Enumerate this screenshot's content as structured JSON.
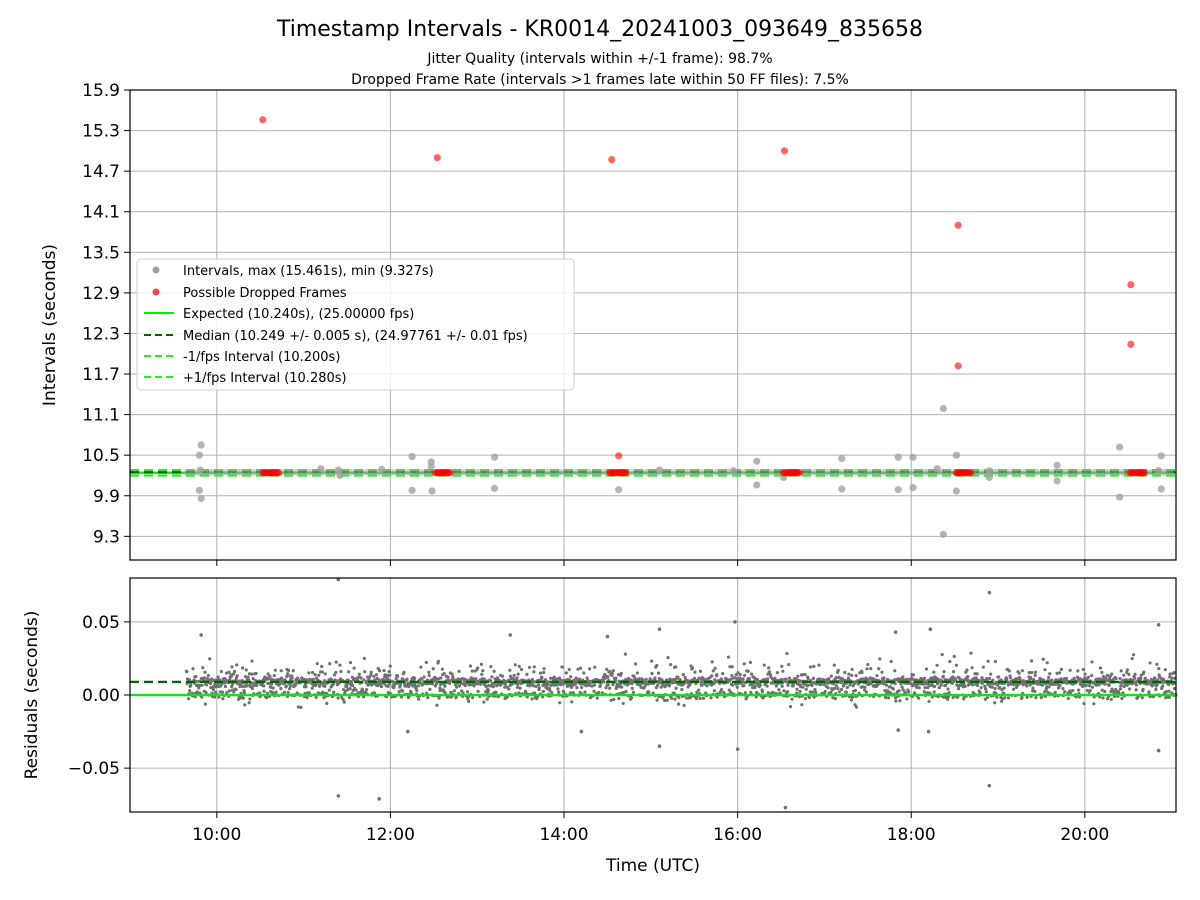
{
  "chart_data": [
    {
      "type": "scatter",
      "title": "Timestamp Intervals - KR0014_20241003_093649_835658",
      "subtitle_lines": [
        "Jitter Quality (intervals within +/-1 frame): 98.7%",
        "Dropped Frame Rate (intervals >1 frames late within 50 FF files): 7.5%"
      ],
      "ylabel": "Intervals (seconds)",
      "xlim_hours": [
        9.0,
        21.05
      ],
      "ylim": [
        8.95,
        15.9
      ],
      "yticks": [
        9.3,
        9.9,
        10.5,
        11.1,
        11.7,
        12.3,
        12.9,
        13.5,
        14.1,
        14.7,
        15.3,
        15.9
      ],
      "ytick_labels": [
        "9.3",
        "9.9",
        "10.5",
        "11.1",
        "11.7",
        "12.3",
        "12.9",
        "13.5",
        "14.1",
        "14.7",
        "15.3",
        "15.9"
      ],
      "grid": true,
      "legend_position": "center-left",
      "series": [
        {
          "name": "Intervals, max (15.461s), min (9.327s)",
          "kind": "scatter",
          "color": "#a0a0a0",
          "points": [
            [
              9.82,
              10.65
            ],
            [
              9.8,
              10.5
            ],
            [
              9.8,
              9.98
            ],
            [
              9.82,
              9.86
            ],
            [
              9.81,
              10.28
            ],
            [
              11.2,
              10.3
            ],
            [
              11.4,
              10.28
            ],
            [
              11.42,
              10.2
            ],
            [
              11.9,
              10.29
            ],
            [
              12.25,
              10.48
            ],
            [
              12.25,
              9.98
            ],
            [
              12.47,
              10.4
            ],
            [
              12.47,
              10.33
            ],
            [
              12.48,
              9.97
            ],
            [
              13.2,
              10.47
            ],
            [
              13.2,
              10.01
            ],
            [
              14.63,
              9.99
            ],
            [
              15.1,
              10.28
            ],
            [
              15.95,
              10.27
            ],
            [
              16.22,
              10.41
            ],
            [
              16.22,
              10.06
            ],
            [
              16.53,
              10.17
            ],
            [
              17.2,
              10.45
            ],
            [
              17.2,
              10.0
            ],
            [
              17.85,
              10.47
            ],
            [
              17.85,
              9.99
            ],
            [
              18.02,
              10.47
            ],
            [
              18.02,
              10.02
            ],
            [
              18.37,
              11.19
            ],
            [
              18.37,
              9.33
            ],
            [
              18.3,
              10.3
            ],
            [
              18.52,
              10.5
            ],
            [
              18.52,
              9.97
            ],
            [
              18.9,
              10.27
            ],
            [
              18.9,
              10.17
            ],
            [
              19.68,
              10.35
            ],
            [
              19.68,
              10.12
            ],
            [
              20.4,
              10.62
            ],
            [
              20.4,
              9.88
            ],
            [
              20.88,
              10.49
            ],
            [
              20.88,
              10.0
            ],
            [
              20.85,
              10.27
            ]
          ]
        },
        {
          "name": "Possible Dropped Frames",
          "kind": "scatter",
          "color": "#ff0000",
          "points": [
            [
              10.53,
              15.46
            ],
            [
              12.54,
              14.9
            ],
            [
              14.55,
              14.87
            ],
            [
              16.54,
              15.0
            ],
            [
              18.54,
              13.9
            ],
            [
              18.54,
              11.82
            ],
            [
              20.53,
              13.02
            ],
            [
              20.53,
              12.14
            ],
            [
              14.63,
              10.49
            ]
          ],
          "clusters": [
            {
              "x_start": 10.53,
              "x_end": 10.72,
              "y": 10.24
            },
            {
              "x_start": 12.52,
              "x_end": 12.7,
              "y": 10.24
            },
            {
              "x_start": 14.53,
              "x_end": 14.72,
              "y": 10.24
            },
            {
              "x_start": 16.53,
              "x_end": 16.72,
              "y": 10.24
            },
            {
              "x_start": 18.52,
              "x_end": 18.7,
              "y": 10.24
            },
            {
              "x_start": 20.52,
              "x_end": 20.7,
              "y": 10.24
            }
          ]
        },
        {
          "name": "Expected (10.240s), (25.00000 fps)",
          "kind": "hline",
          "y": 10.24,
          "color": "#00ee00",
          "style": "solid"
        },
        {
          "name": "Median (10.249 +/- 0.005 s), (24.97761 +/- 0.01 fps)",
          "kind": "hline",
          "y": 10.249,
          "color": "#006400",
          "style": "dashed"
        },
        {
          "name": "-1/fps Interval (10.200s)",
          "kind": "hline",
          "y": 10.2,
          "color": "#22ee22",
          "style": "dashed"
        },
        {
          "name": "+1/fps Interval (10.280s)",
          "kind": "hline",
          "y": 10.28,
          "color": "#22ee22",
          "style": "dashed"
        }
      ]
    },
    {
      "type": "scatter",
      "xlabel": "Time (UTC)",
      "ylabel": "Residuals (seconds)",
      "xlim_hours": [
        9.0,
        21.05
      ],
      "ylim": [
        -0.08,
        0.08
      ],
      "yticks": [
        -0.05,
        0.0,
        0.05
      ],
      "ytick_labels": [
        "−0.05",
        "0.00",
        "0.05"
      ],
      "xticks_hours": [
        10,
        12,
        14,
        16,
        18,
        20
      ],
      "xtick_labels": [
        "10:00",
        "12:00",
        "14:00",
        "16:00",
        "18:00",
        "20:00"
      ],
      "grid": true,
      "series": [
        {
          "kind": "scatter",
          "color": "#707070",
          "x_range_hours": [
            9.65,
            21.05
          ],
          "base_level": 0.009,
          "spread": 0.015,
          "outliers": [
            [
              11.4,
              0.079
            ],
            [
              11.4,
              -0.069
            ],
            [
              11.87,
              -0.071
            ],
            [
              16.55,
              -0.077
            ],
            [
              18.9,
              0.07
            ],
            [
              18.9,
              -0.062
            ],
            [
              20.85,
              0.048
            ],
            [
              20.85,
              -0.038
            ],
            [
              15.97,
              0.05
            ],
            [
              16.0,
              -0.037
            ],
            [
              15.1,
              -0.035
            ],
            [
              15.1,
              0.045
            ],
            [
              14.5,
              0.04
            ],
            [
              13.38,
              0.041
            ],
            [
              18.22,
              0.045
            ],
            [
              17.82,
              0.043
            ],
            [
              9.82,
              0.041
            ],
            [
              18.2,
              -0.025
            ],
            [
              17.85,
              -0.024
            ],
            [
              14.2,
              -0.025
            ],
            [
              12.2,
              -0.025
            ]
          ]
        },
        {
          "kind": "hline",
          "y": 0.0,
          "color": "#00ee00",
          "style": "solid"
        },
        {
          "kind": "hline",
          "y": 0.009,
          "color": "#006400",
          "style": "dashed"
        }
      ]
    }
  ]
}
